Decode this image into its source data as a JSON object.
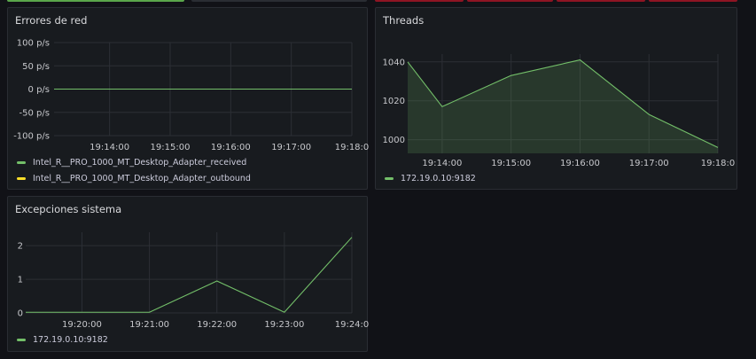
{
  "colors": {
    "green": "#73bf69",
    "yellow": "#fade2a",
    "grid": "#2c2f35",
    "axis_text": "#c7c8cc"
  },
  "panels": [
    {
      "title": "Errores de red",
      "legend": [
        {
          "label": "Intel_R__PRO_1000_MT_Desktop_Adapter_received",
          "color": "#73bf69"
        },
        {
          "label": "Intel_R__PRO_1000_MT_Desktop_Adapter_outbound",
          "color": "#fade2a"
        }
      ]
    },
    {
      "title": "Threads",
      "legend": [
        {
          "label": "172.19.0.10:9182",
          "color": "#73bf69"
        }
      ]
    },
    {
      "title": "Excepciones sistema",
      "legend": [
        {
          "label": "172.19.0.10:9182",
          "color": "#73bf69"
        }
      ]
    }
  ],
  "chart_data": [
    {
      "type": "line",
      "title": "Errores de red",
      "x_ticks": [
        "19:14:00",
        "19:15:00",
        "19:16:00",
        "19:17:00",
        "19:18:0"
      ],
      "y_ticks": [
        "100 p/s",
        "50 p/s",
        "0 p/s",
        "-50 p/s",
        "-100 p/s"
      ],
      "ylim": [
        -100,
        100
      ],
      "xlim": [
        "19:13:05",
        "19:18:00"
      ],
      "series": [
        {
          "name": "Intel_R__PRO_1000_MT_Desktop_Adapter_received",
          "color": "#73bf69",
          "x": [
            "19:13:05",
            "19:18:00"
          ],
          "values": [
            0,
            0
          ]
        },
        {
          "name": "Intel_R__PRO_1000_MT_Desktop_Adapter_outbound",
          "color": "#fade2a",
          "x": [
            "19:13:05",
            "19:18:00"
          ],
          "values": [
            0,
            0
          ]
        }
      ],
      "grid": true,
      "legend": "bottom"
    },
    {
      "type": "area",
      "title": "Threads",
      "x_ticks": [
        "19:14:00",
        "19:15:00",
        "19:16:00",
        "19:17:00",
        "19:18:0"
      ],
      "y_ticks": [
        "1040",
        "1020",
        "1000"
      ],
      "ylim": [
        993,
        1044
      ],
      "xlim": [
        "19:13:30",
        "19:18:00"
      ],
      "series": [
        {
          "name": "172.19.0.10:9182",
          "color": "#73bf69",
          "x": [
            "19:13:30",
            "19:14:00",
            "19:15:00",
            "19:16:00",
            "19:17:00",
            "19:18:00"
          ],
          "values": [
            1040,
            1017,
            1033,
            1041,
            1013,
            996
          ]
        }
      ],
      "grid": true,
      "legend": "bottom"
    },
    {
      "type": "line",
      "title": "Excepciones sistema",
      "x_ticks": [
        "19:20:00",
        "19:21:00",
        "19:22:00",
        "19:23:00",
        "19:24:0"
      ],
      "y_ticks": [
        "2",
        "1",
        "0"
      ],
      "ylim": [
        0,
        2.4
      ],
      "xlim": [
        "19:19:10",
        "19:24:00"
      ],
      "series": [
        {
          "name": "172.19.0.10:9182",
          "color": "#73bf69",
          "x": [
            "19:19:10",
            "19:20:00",
            "19:21:00",
            "19:22:00",
            "19:23:00",
            "19:24:00"
          ],
          "values": [
            0.02,
            0.02,
            0.02,
            0.95,
            0.02,
            2.25
          ]
        }
      ],
      "grid": true,
      "legend": "bottom"
    }
  ]
}
